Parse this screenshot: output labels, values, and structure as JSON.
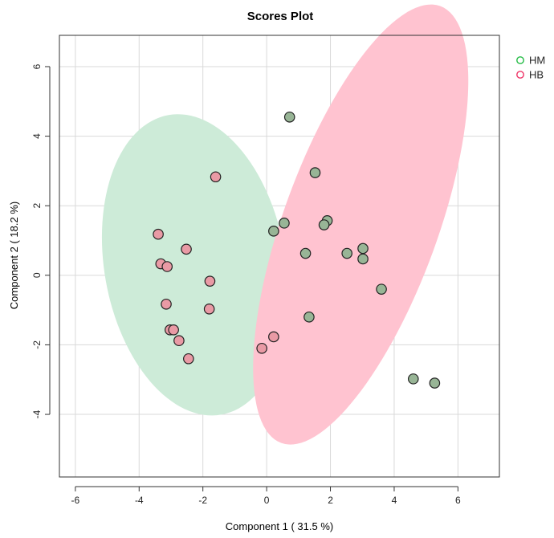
{
  "chart_data": {
    "type": "scatter",
    "title": "Scores Plot",
    "xlabel": "Component 1 ( 31.5 %)",
    "ylabel": "Component 2 ( 18.2 %)",
    "xlim": [
      -6.5,
      7.3
    ],
    "ylim": [
      -5.8,
      6.9
    ],
    "xticks": [
      -6,
      -4,
      -2,
      0,
      2,
      4,
      6
    ],
    "yticks": [
      -4,
      -2,
      0,
      2,
      4,
      6
    ],
    "tick_labels_x": [
      "-6",
      "-4",
      "-2",
      "0",
      "2",
      "4",
      "6"
    ],
    "tick_labels_y": [
      "-4",
      "-2",
      "0",
      "2",
      "4",
      "6"
    ],
    "grid": true,
    "legend_position": "top-right",
    "legend": [
      {
        "label": "HM",
        "color": "#22bb44"
      },
      {
        "label": "HB",
        "color": "#ee3366"
      }
    ],
    "ellipses": [
      {
        "name": "HM",
        "center": [
          -2.25,
          0.3
        ],
        "rx": 2.84,
        "ry": 4.77,
        "rotation_deg": -10,
        "fill": "#cdebd8"
      },
      {
        "name": "HB",
        "center": [
          2.95,
          1.46
        ],
        "rx": 2.42,
        "ry": 7.29,
        "rotation_deg": 20,
        "fill": "#ffc3d0"
      }
    ],
    "series": [
      {
        "name": "HM",
        "marker_fill": "#98b596",
        "points": [
          [
            0.72,
            4.55
          ],
          [
            1.52,
            2.95
          ],
          [
            0.55,
            1.5
          ],
          [
            1.9,
            1.57
          ],
          [
            1.8,
            1.45
          ],
          [
            0.22,
            1.27
          ],
          [
            1.22,
            0.63
          ],
          [
            2.52,
            0.63
          ],
          [
            3.02,
            0.77
          ],
          [
            3.02,
            0.47
          ],
          [
            3.6,
            -0.4
          ],
          [
            1.33,
            -1.2
          ],
          [
            4.6,
            -2.98
          ],
          [
            5.27,
            -3.1
          ]
        ]
      },
      {
        "name": "HB",
        "marker_fill": "#e99aa5",
        "points": [
          [
            -1.6,
            2.83
          ],
          [
            -3.4,
            1.18
          ],
          [
            -2.52,
            0.75
          ],
          [
            -3.32,
            0.33
          ],
          [
            -3.12,
            0.25
          ],
          [
            -1.78,
            -0.17
          ],
          [
            -3.15,
            -0.83
          ],
          [
            -1.8,
            -0.97
          ],
          [
            -3.03,
            -1.57
          ],
          [
            -2.92,
            -1.57
          ],
          [
            -2.75,
            -1.88
          ],
          [
            -2.45,
            -2.4
          ],
          [
            0.22,
            -1.77
          ],
          [
            -0.15,
            -2.1
          ]
        ]
      }
    ],
    "point_stroke": "#222222",
    "grid_color": "#d9d9d9",
    "frame_color": "#333333"
  }
}
